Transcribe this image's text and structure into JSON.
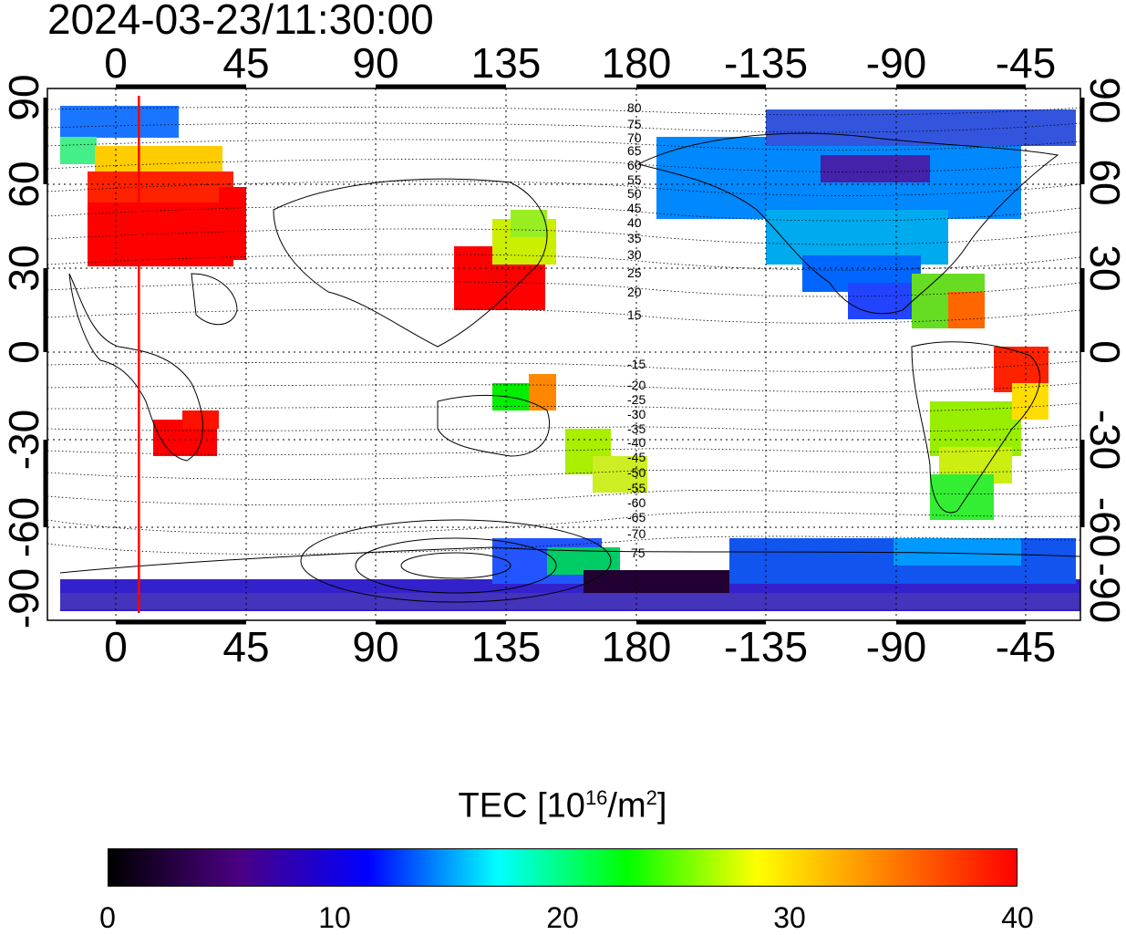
{
  "timestamp": "2024-03-23/11:30:00",
  "lon_ticks": [
    "0",
    "45",
    "90",
    "135",
    "180",
    "-135",
    "-90",
    "-45"
  ],
  "lat_ticks": [
    "90",
    "60",
    "30",
    "0",
    "-30",
    "-60",
    "-90"
  ],
  "contour_labels_north": [
    "80",
    "75",
    "70",
    "65",
    "60",
    "55",
    "50",
    "45",
    "40",
    "35",
    "30",
    "25",
    "20",
    "15"
  ],
  "contour_labels_south": [
    "-15",
    "-20",
    "-25",
    "-30",
    "-35",
    "-40",
    "-45",
    "-50",
    "-55",
    "-60",
    "-65",
    "-70",
    "75"
  ],
  "colorbar": {
    "title_prefix": "TEC  [10",
    "title_exp1": "16",
    "title_mid": "/m",
    "title_exp2": "2",
    "title_suffix": "]",
    "ticks": [
      "0",
      "10",
      "20",
      "30",
      "40"
    ],
    "min": 0,
    "max": 40,
    "colors": [
      "#000000",
      "#4b0082",
      "#0000ff",
      "#00ffff",
      "#00ff00",
      "#ffff00",
      "#ff8000",
      "#ff0000"
    ]
  },
  "marker_line_longitude": 8,
  "colors": {
    "frame": "#000000",
    "grid": "#000000",
    "marker": "#ff0000"
  }
}
